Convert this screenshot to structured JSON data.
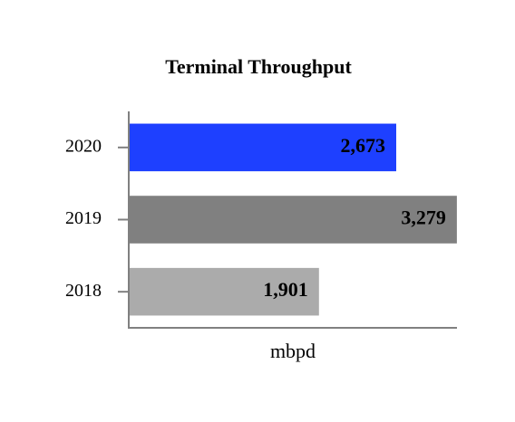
{
  "chart_data": {
    "type": "hbar",
    "title": "Terminal Throughput",
    "x_label": "mbpd",
    "categories": [
      "2020",
      "2019",
      "2018"
    ],
    "values": [
      2673,
      3279,
      1901
    ],
    "value_labels": [
      "2,673",
      "3,279",
      "1,901"
    ],
    "colors": [
      "#1e40ff",
      "#808080",
      "#ababab"
    ],
    "label_colors": [
      "#ffffff",
      "#ffffff",
      "#000000"
    ],
    "xlim": [
      0,
      3280
    ]
  }
}
